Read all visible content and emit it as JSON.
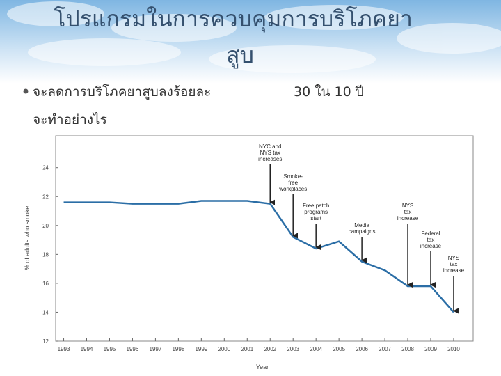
{
  "slide": {
    "title_lines": [
      "โปรแกรมในการควบคุมการบริโภคยา",
      "สูบ"
    ],
    "bullet_lines": [
      "จะลดการบริโภคยาสูบลงร้อยละ",
      "30 ใน 10 ปี",
      "จะทำอย่างไร"
    ]
  },
  "chart_data": {
    "type": "line",
    "x_label": "Year",
    "y_label": "% of adults who smoke",
    "x": [
      1993,
      1994,
      1995,
      1996,
      1997,
      1998,
      1999,
      2000,
      2001,
      2002,
      2003,
      2004,
      2005,
      2006,
      2007,
      2008,
      2009,
      2010
    ],
    "values": [
      21.6,
      21.6,
      21.6,
      21.5,
      21.5,
      21.5,
      21.7,
      21.7,
      21.7,
      21.5,
      19.2,
      18.4,
      18.9,
      17.5,
      16.9,
      15.8,
      15.8,
      14.0
    ],
    "color": "#2b6ea6",
    "xlim": [
      1992.65,
      2010.85
    ],
    "xticks": [
      1993,
      1994,
      1995,
      1996,
      1997,
      1998,
      1999,
      2000,
      2001,
      2002,
      2003,
      2004,
      2005,
      2006,
      2007,
      2008,
      2009,
      2010
    ],
    "ylim": [
      12,
      26.2
    ],
    "yticks": [
      12,
      14,
      16,
      18,
      20,
      22,
      24
    ],
    "annotations": [
      {
        "x": 2002,
        "lines": [
          "NYC and",
          "NYS tax",
          "increases"
        ]
      },
      {
        "x": 2003,
        "lines": [
          "Smoke-",
          "free",
          "workplaces"
        ]
      },
      {
        "x": 2004,
        "lines": [
          "Free patch",
          "programs",
          "start"
        ]
      },
      {
        "x": 2006,
        "lines": [
          "Media",
          "campaigns"
        ]
      },
      {
        "x": 2008,
        "lines": [
          "NYS",
          "tax",
          "increase"
        ]
      },
      {
        "x": 2009,
        "lines": [
          "Federal",
          "tax",
          "increase"
        ]
      },
      {
        "x": 2010,
        "lines": [
          "NYS",
          "tax",
          "increase"
        ]
      }
    ]
  }
}
